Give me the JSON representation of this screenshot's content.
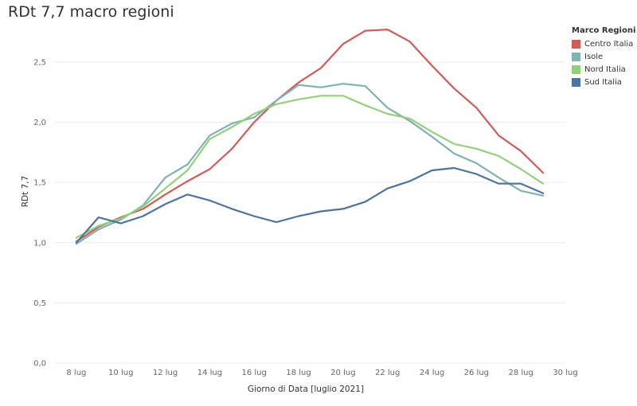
{
  "title": "RDt 7,7 macro regioni",
  "legend": {
    "title": "Marco Regioni",
    "items": [
      {
        "label": "Centro Italia",
        "color": "#d05b59"
      },
      {
        "label": "Isole",
        "color": "#7fb2b0"
      },
      {
        "label": "Nord Italia",
        "color": "#95cf7e"
      },
      {
        "label": "Sud Italia",
        "color": "#4e73a0"
      }
    ]
  },
  "chart_data": {
    "type": "line",
    "title": "RDt 7,7 macro regioni",
    "xlabel": "Giorno di Data [luglio 2021]",
    "ylabel": "RDt 7,7",
    "x": [
      "2021-07-08",
      "2021-07-09",
      "2021-07-10",
      "2021-07-11",
      "2021-07-12",
      "2021-07-13",
      "2021-07-14",
      "2021-07-15",
      "2021-07-16",
      "2021-07-17",
      "2021-07-18",
      "2021-07-19",
      "2021-07-20",
      "2021-07-21",
      "2021-07-22",
      "2021-07-23",
      "2021-07-24",
      "2021-07-25",
      "2021-07-26",
      "2021-07-27",
      "2021-07-28",
      "2021-07-29"
    ],
    "xtick_labels": [
      "8 lug",
      "10 lug",
      "12 lug",
      "14 lug",
      "16 lug",
      "18 lug",
      "20 lug",
      "22 lug",
      "24 lug",
      "26 lug",
      "28 lug",
      "30 lug"
    ],
    "xlim": [
      "2021-07-07",
      "2021-07-30"
    ],
    "ytick_labels": [
      "0,0",
      "0,5",
      "1,0",
      "1,5",
      "2,0",
      "2,5"
    ],
    "yticks": [
      0,
      0.5,
      1.0,
      1.5,
      2.0,
      2.5
    ],
    "ylim": [
      0,
      2.85
    ],
    "grid": true,
    "legend_position": "right",
    "series": [
      {
        "name": "Centro Italia",
        "color": "#d05b59",
        "values": [
          1.01,
          1.13,
          1.21,
          1.28,
          1.4,
          1.51,
          1.61,
          1.78,
          2.0,
          2.18,
          2.33,
          2.45,
          2.65,
          2.76,
          2.77,
          2.67,
          2.47,
          2.28,
          2.12,
          1.89,
          1.76,
          1.58
        ]
      },
      {
        "name": "Isole",
        "color": "#7fb2b0",
        "values": [
          0.99,
          1.11,
          1.19,
          1.31,
          1.54,
          1.65,
          1.89,
          1.99,
          2.04,
          2.18,
          2.31,
          2.29,
          2.32,
          2.3,
          2.12,
          2.01,
          1.88,
          1.74,
          1.66,
          1.54,
          1.43,
          1.39
        ]
      },
      {
        "name": "Nord Italia",
        "color": "#95cf7e",
        "values": [
          1.04,
          1.14,
          1.2,
          1.3,
          1.45,
          1.6,
          1.86,
          1.96,
          2.07,
          2.15,
          2.19,
          2.22,
          2.22,
          2.14,
          2.07,
          2.03,
          1.92,
          1.82,
          1.78,
          1.72,
          1.61,
          1.49
        ]
      },
      {
        "name": "Sud Italia",
        "color": "#4e73a0",
        "values": [
          1.0,
          1.21,
          1.16,
          1.22,
          1.32,
          1.4,
          1.35,
          1.28,
          1.22,
          1.17,
          1.22,
          1.26,
          1.28,
          1.34,
          1.45,
          1.51,
          1.6,
          1.62,
          1.57,
          1.49,
          1.49,
          1.41
        ]
      }
    ]
  }
}
